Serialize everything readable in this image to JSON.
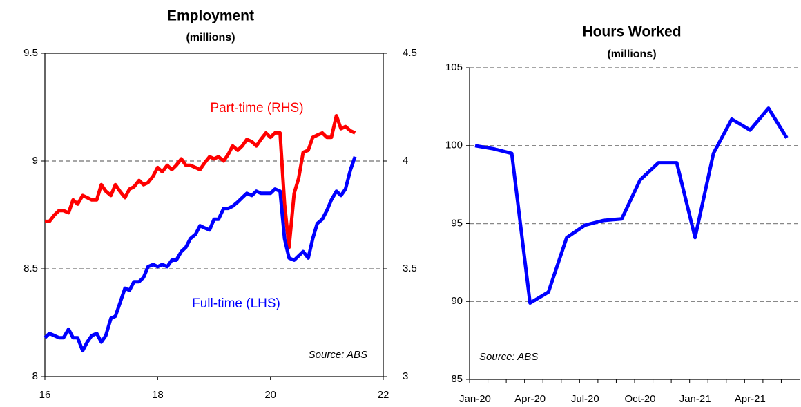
{
  "chart_data": [
    {
      "type": "line",
      "title": "Employment",
      "subtitle": "(millions)",
      "x": [
        16,
        16.08,
        16.17,
        16.25,
        16.33,
        16.42,
        16.5,
        16.58,
        16.67,
        16.75,
        16.83,
        16.92,
        17,
        17.08,
        17.17,
        17.25,
        17.33,
        17.42,
        17.5,
        17.58,
        17.67,
        17.75,
        17.83,
        17.92,
        18,
        18.08,
        18.17,
        18.25,
        18.33,
        18.42,
        18.5,
        18.58,
        18.67,
        18.75,
        18.83,
        18.92,
        19,
        19.08,
        19.17,
        19.25,
        19.33,
        19.42,
        19.5,
        19.58,
        19.67,
        19.75,
        19.83,
        19.92,
        20,
        20.08,
        20.17,
        20.25,
        20.33,
        20.42,
        20.5,
        20.58,
        20.67,
        20.75,
        20.83,
        20.92,
        21,
        21.08,
        21.17,
        21.25,
        21.33,
        21.42,
        21.5
      ],
      "xlim": [
        16,
        22
      ],
      "xticks": [
        16,
        18,
        20,
        22
      ],
      "ylim": [
        8,
        9.5
      ],
      "yticks": [
        8,
        8.5,
        9,
        9.5
      ],
      "y2lim": [
        3,
        4.5
      ],
      "y2ticks": [
        3,
        3.5,
        4,
        4.5
      ],
      "grid": true,
      "series": [
        {
          "name": "Part-time (RHS)",
          "color": "#ff0000",
          "axis": "y2",
          "values": [
            3.72,
            3.72,
            3.75,
            3.77,
            3.77,
            3.76,
            3.82,
            3.8,
            3.84,
            3.83,
            3.82,
            3.82,
            3.89,
            3.86,
            3.84,
            3.89,
            3.86,
            3.83,
            3.87,
            3.88,
            3.91,
            3.89,
            3.9,
            3.93,
            3.97,
            3.95,
            3.98,
            3.96,
            3.98,
            4.01,
            3.98,
            3.98,
            3.97,
            3.96,
            3.99,
            4.02,
            4.01,
            4.02,
            4.0,
            4.03,
            4.07,
            4.05,
            4.07,
            4.1,
            4.09,
            4.07,
            4.1,
            4.13,
            4.11,
            4.13,
            4.13,
            3.8,
            3.6,
            3.85,
            3.92,
            4.04,
            4.05,
            4.11,
            4.12,
            4.13,
            4.11,
            4.11,
            4.21,
            4.15,
            4.16,
            4.14,
            4.13
          ]
        },
        {
          "name": "Full-time (LHS)",
          "color": "#0000ff",
          "values": [
            8.18,
            8.2,
            8.19,
            8.18,
            8.18,
            8.22,
            8.18,
            8.18,
            8.12,
            8.16,
            8.19,
            8.2,
            8.16,
            8.19,
            8.27,
            8.28,
            8.34,
            8.41,
            8.4,
            8.44,
            8.44,
            8.46,
            8.51,
            8.52,
            8.51,
            8.52,
            8.51,
            8.54,
            8.54,
            8.58,
            8.6,
            8.64,
            8.66,
            8.7,
            8.69,
            8.68,
            8.73,
            8.73,
            8.78,
            8.78,
            8.79,
            8.81,
            8.83,
            8.85,
            8.84,
            8.86,
            8.85,
            8.85,
            8.85,
            8.87,
            8.86,
            8.64,
            8.55,
            8.54,
            8.56,
            8.58,
            8.55,
            8.64,
            8.71,
            8.73,
            8.77,
            8.82,
            8.86,
            8.84,
            8.87,
            8.96,
            9.02
          ]
        }
      ],
      "annotations": [
        "Source: ABS"
      ]
    },
    {
      "type": "line",
      "title": "Hours Worked",
      "subtitle": "(millions)",
      "categories": [
        "Jan-20",
        null,
        null,
        "Apr-20",
        null,
        null,
        "Jul-20",
        null,
        null,
        "Oct-20",
        null,
        null,
        "Jan-21",
        null,
        null,
        "Apr-21",
        null,
        null
      ],
      "values": [
        100,
        99.8,
        99.5,
        89.9,
        90.6,
        94.1,
        94.9,
        95.2,
        95.3,
        97.8,
        98.9,
        98.9,
        94.1,
        99.5,
        101.7,
        101.0,
        102.4,
        100.5
      ],
      "color": "#0000ff",
      "ylim": [
        85,
        105
      ],
      "yticks": [
        85,
        90,
        95,
        100,
        105
      ],
      "grid": true,
      "annotations": [
        "Source: ABS"
      ]
    }
  ]
}
